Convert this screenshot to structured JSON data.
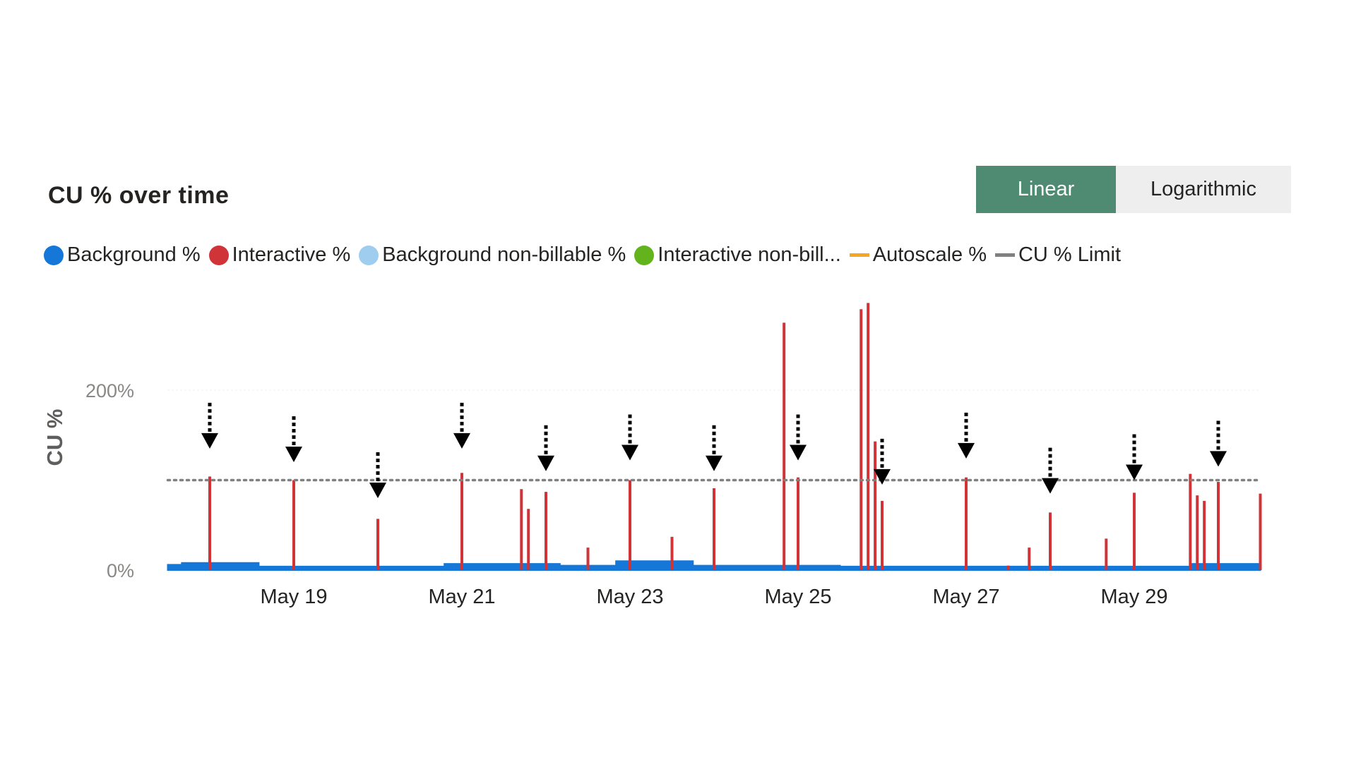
{
  "title": "CU % over time",
  "scale_toggle": {
    "options": [
      "Linear",
      "Logarithmic"
    ],
    "selected": "Linear",
    "active_color": "#4e8b72"
  },
  "legend": [
    {
      "label": "Background %",
      "color": "#1577d8",
      "shape": "dot"
    },
    {
      "label": "Interactive %",
      "color": "#d13438",
      "shape": "dot"
    },
    {
      "label": "Background non-billable %",
      "color": "#9fcdf0",
      "shape": "dot"
    },
    {
      "label": "Interactive non-bill...",
      "color": "#63b31c",
      "shape": "dot"
    },
    {
      "label": "Autoscale %",
      "color": "#f5a623",
      "shape": "line"
    },
    {
      "label": "CU % Limit",
      "color": "#808080",
      "shape": "line"
    }
  ],
  "chart_data": {
    "type": "area",
    "title": "CU % over time",
    "ylabel": "CU %",
    "xlabel": "",
    "y_ticks": [
      "200%",
      "0%"
    ],
    "x_ticks": [
      "May 19",
      "May 21",
      "May 23",
      "May 25",
      "May 27",
      "May 29"
    ],
    "x_range": [
      "May 17 12:00",
      "May 30 12:00"
    ],
    "ylim": [
      0,
      400
    ],
    "grid": true,
    "limit_line": {
      "name": "CU % Limit",
      "value": 100,
      "color": "#808080"
    },
    "series": [
      {
        "name": "Background %",
        "color": "#1577d8",
        "segments": [
          {
            "start": "May 17 12:00",
            "end": "May 17 16:00",
            "value": 6
          },
          {
            "start": "May 17 16:00",
            "end": "May 18 14:00",
            "value": 8
          },
          {
            "start": "May 18 14:00",
            "end": "May 20 19:00",
            "value": 4
          },
          {
            "start": "May 20 19:00",
            "end": "May 22 04:00",
            "value": 7
          },
          {
            "start": "May 22 04:00",
            "end": "May 22 20:00",
            "value": 5
          },
          {
            "start": "May 22 20:00",
            "end": "May 23 18:00",
            "value": 10
          },
          {
            "start": "May 23 18:00",
            "end": "May 25 12:00",
            "value": 5
          },
          {
            "start": "May 25 12:00",
            "end": "May 29 16:00",
            "value": 4
          },
          {
            "start": "May 29 16:00",
            "end": "May 30 12:00",
            "value": 7
          }
        ]
      },
      {
        "name": "Interactive %",
        "color": "#d13438",
        "spikes": [
          {
            "t": "May 18 00:00",
            "value": 104
          },
          {
            "t": "May 19 00:00",
            "value": 100
          },
          {
            "t": "May 20 00:00",
            "value": 57
          },
          {
            "t": "May 21 00:00",
            "value": 108
          },
          {
            "t": "May 21 17:00",
            "value": 90
          },
          {
            "t": "May 21 19:00",
            "value": 68
          },
          {
            "t": "May 22 00:00",
            "value": 87
          },
          {
            "t": "May 22 12:00",
            "value": 25
          },
          {
            "t": "May 23 00:00",
            "value": 100
          },
          {
            "t": "May 23 12:00",
            "value": 37
          },
          {
            "t": "May 24 00:00",
            "value": 91
          },
          {
            "t": "May 24 20:00",
            "value": 275
          },
          {
            "t": "May 25 00:00",
            "value": 103
          },
          {
            "t": "May 25 18:00",
            "value": 290
          },
          {
            "t": "May 25 20:00",
            "value": 297
          },
          {
            "t": "May 25 22:00",
            "value": 143
          },
          {
            "t": "May 26 00:00",
            "value": 77
          },
          {
            "t": "May 27 00:00",
            "value": 103
          },
          {
            "t": "May 27 12:00",
            "value": 5
          },
          {
            "t": "May 27 18:00",
            "value": 25
          },
          {
            "t": "May 28 00:00",
            "value": 64
          },
          {
            "t": "May 28 16:00",
            "value": 35
          },
          {
            "t": "May 29 00:00",
            "value": 86
          },
          {
            "t": "May 29 16:00",
            "value": 107
          },
          {
            "t": "May 29 18:00",
            "value": 83
          },
          {
            "t": "May 29 20:00",
            "value": 77
          },
          {
            "t": "May 30 00:00",
            "value": 98
          },
          {
            "t": "May 30 12:00",
            "value": 85
          }
        ]
      }
    ],
    "annotations": {
      "type": "dashed-down-arrows",
      "times": [
        "May 18 00:00",
        "May 19 00:00",
        "May 20 00:00",
        "May 21 00:00",
        "May 22 00:00",
        "May 23 00:00",
        "May 24 00:00",
        "May 25 00:00",
        "May 26 00:00",
        "May 27 00:00",
        "May 28 00:00",
        "May 29 00:00",
        "May 30 00:00"
      ],
      "tip_values": [
        135,
        120,
        80,
        135,
        110,
        122,
        110,
        122,
        95,
        124,
        85,
        100,
        115
      ]
    }
  }
}
